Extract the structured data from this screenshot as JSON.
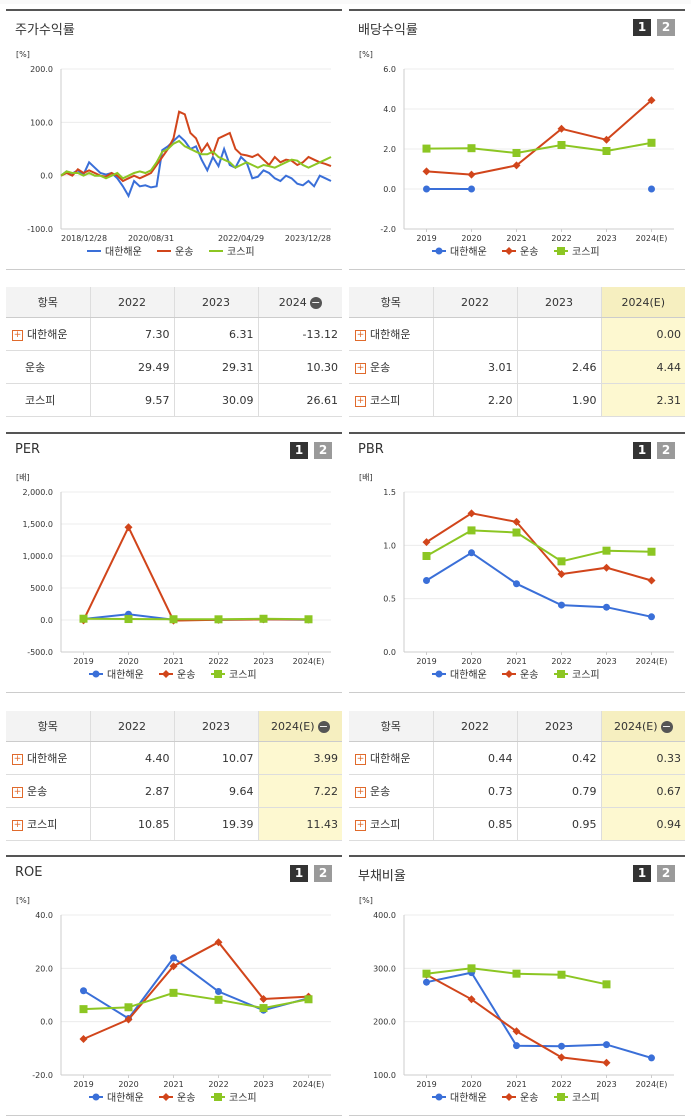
{
  "colors": {
    "s1": "#3a6fd8",
    "s2": "#d1451b",
    "s3": "#8cc623"
  },
  "legend": [
    "대한해운",
    "운송",
    "코스피"
  ],
  "panels": {
    "p1": {
      "title": "주가수익률",
      "unit": "[%]"
    },
    "p2": {
      "title": "배당수익률",
      "unit": "[%]"
    },
    "p3": {
      "title": "PER",
      "unit": "[배]"
    },
    "p4": {
      "title": "PBR",
      "unit": "[배]"
    },
    "p5": {
      "title": "ROE",
      "unit": "[%]"
    },
    "p6": {
      "title": "부채비율",
      "unit": "[%]"
    }
  },
  "page_buttons": [
    "1",
    "2"
  ],
  "tables": {
    "t1": {
      "headers": [
        "항목",
        "2022",
        "2023",
        "2024"
      ],
      "rows": [
        {
          "name": "대한해운",
          "plus": true,
          "values": [
            "7.30",
            "6.31",
            "-13.12"
          ]
        },
        {
          "name": "운송",
          "plus": false,
          "values": [
            "29.49",
            "29.31",
            "10.30"
          ]
        },
        {
          "name": "코스피",
          "plus": false,
          "values": [
            "9.57",
            "30.09",
            "26.61"
          ]
        }
      ]
    },
    "t2": {
      "headers": [
        "항목",
        "2022",
        "2023",
        "2024(E)"
      ],
      "rows": [
        {
          "name": "대한해운",
          "plus": true,
          "values": [
            "",
            "",
            "0.00"
          ]
        },
        {
          "name": "운송",
          "plus": true,
          "values": [
            "3.01",
            "2.46",
            "4.44"
          ]
        },
        {
          "name": "코스피",
          "plus": true,
          "values": [
            "2.20",
            "1.90",
            "2.31"
          ]
        }
      ]
    },
    "t3": {
      "headers": [
        "항목",
        "2022",
        "2023",
        "2024(E)"
      ],
      "rows": [
        {
          "name": "대한해운",
          "plus": true,
          "values": [
            "4.40",
            "10.07",
            "3.99"
          ]
        },
        {
          "name": "운송",
          "plus": true,
          "values": [
            "2.87",
            "9.64",
            "7.22"
          ]
        },
        {
          "name": "코스피",
          "plus": true,
          "values": [
            "10.85",
            "19.39",
            "11.43"
          ]
        }
      ]
    },
    "t4": {
      "headers": [
        "항목",
        "2022",
        "2023",
        "2024(E)"
      ],
      "rows": [
        {
          "name": "대한해운",
          "plus": true,
          "values": [
            "0.44",
            "0.42",
            "0.33"
          ]
        },
        {
          "name": "운송",
          "plus": true,
          "values": [
            "0.73",
            "0.79",
            "0.67"
          ]
        },
        {
          "name": "코스피",
          "plus": true,
          "values": [
            "0.85",
            "0.95",
            "0.94"
          ]
        }
      ]
    }
  },
  "chart_data": [
    {
      "id": "p1",
      "type": "line",
      "title": "주가수익률",
      "ylabel": "[%]",
      "ylim": [
        -100,
        200
      ],
      "yticks": [
        "200.0",
        "100.0",
        "0.0",
        "-100.0"
      ],
      "yticks_values": [
        200,
        100,
        0,
        -100
      ],
      "xticks": [
        "2018/12/28",
        "2020/08/31",
        "2022/04/29",
        "2023/12/28"
      ],
      "series": [
        {
          "name": "대한해운",
          "values": [
            0,
            8,
            4,
            10,
            2,
            25,
            15,
            5,
            2,
            5,
            -5,
            -20,
            -38,
            -10,
            -20,
            -18,
            -22,
            -20,
            48,
            55,
            65,
            75,
            65,
            50,
            55,
            30,
            10,
            35,
            18,
            50,
            20,
            15,
            35,
            25,
            -5,
            -2,
            10,
            5,
            -5,
            -10,
            0,
            -5,
            -15,
            -18,
            -10,
            -20,
            0,
            -5,
            -10
          ]
        },
        {
          "name": "운송",
          "values": [
            0,
            5,
            0,
            12,
            5,
            10,
            5,
            0,
            -2,
            5,
            0,
            -10,
            -5,
            0,
            -5,
            0,
            5,
            20,
            35,
            50,
            70,
            120,
            115,
            80,
            70,
            45,
            60,
            40,
            70,
            75,
            80,
            50,
            40,
            38,
            35,
            40,
            30,
            20,
            35,
            25,
            30,
            28,
            20,
            25,
            35,
            30,
            25,
            22,
            18
          ]
        },
        {
          "name": "코스피",
          "values": [
            0,
            8,
            5,
            5,
            0,
            5,
            0,
            0,
            -5,
            0,
            5,
            -5,
            0,
            5,
            8,
            5,
            10,
            25,
            45,
            50,
            60,
            65,
            55,
            50,
            45,
            40,
            40,
            45,
            35,
            30,
            25,
            15,
            20,
            25,
            20,
            15,
            20,
            18,
            15,
            20,
            25,
            30,
            28,
            20,
            15,
            20,
            25,
            30,
            35
          ]
        }
      ]
    },
    {
      "id": "p2",
      "type": "line",
      "title": "배당수익률",
      "ylabel": "[%]",
      "ylim": [
        -2,
        6
      ],
      "yticks": [
        "6.0",
        "4.0",
        "2.0",
        "0.0",
        "-2.0"
      ],
      "yticks_values": [
        6,
        4,
        2,
        0,
        -2
      ],
      "categories": [
        "2019",
        "2020",
        "2021",
        "2022",
        "2023",
        "2024(E)"
      ],
      "series": [
        {
          "name": "대한해운",
          "values": [
            0,
            0,
            null,
            null,
            null,
            0
          ]
        },
        {
          "name": "운송",
          "values": [
            0.88,
            0.72,
            1.18,
            3.01,
            2.46,
            4.44
          ]
        },
        {
          "name": "코스피",
          "values": [
            2.02,
            2.04,
            1.8,
            2.2,
            1.9,
            2.31
          ]
        }
      ]
    },
    {
      "id": "p3",
      "type": "line",
      "title": "PER",
      "ylabel": "[배]",
      "ylim": [
        -500,
        2000
      ],
      "yticks": [
        "2,000.0",
        "1,500.0",
        "1,000.0",
        "500.0",
        "0.0",
        "-500.0"
      ],
      "yticks_values": [
        2000,
        1500,
        1000,
        500,
        0,
        -500
      ],
      "categories": [
        "2019",
        "2020",
        "2021",
        "2022",
        "2023",
        "2024(E)"
      ],
      "series": [
        {
          "name": "대한해운",
          "values": [
            15,
            90,
            5,
            4.4,
            10.07,
            3.99
          ]
        },
        {
          "name": "운송",
          "values": [
            -5,
            1450,
            -10,
            2.87,
            9.64,
            7.22
          ]
        },
        {
          "name": "코스피",
          "values": [
            20,
            15,
            12,
            10.85,
            19.39,
            11.43
          ]
        }
      ]
    },
    {
      "id": "p4",
      "type": "line",
      "title": "PBR",
      "ylabel": "[배]",
      "ylim": [
        0,
        1.5
      ],
      "yticks": [
        "1.5",
        "1.0",
        "0.5",
        "0.0"
      ],
      "yticks_values": [
        1.5,
        1,
        0.5,
        0
      ],
      "categories": [
        "2019",
        "2020",
        "2021",
        "2022",
        "2023",
        "2024(E)"
      ],
      "series": [
        {
          "name": "대한해운",
          "values": [
            0.67,
            0.93,
            0.64,
            0.44,
            0.42,
            0.33
          ]
        },
        {
          "name": "운송",
          "values": [
            1.03,
            1.3,
            1.22,
            0.73,
            0.79,
            0.67
          ]
        },
        {
          "name": "코스피",
          "values": [
            0.9,
            1.14,
            1.12,
            0.85,
            0.95,
            0.94
          ]
        }
      ]
    },
    {
      "id": "p5",
      "type": "line",
      "title": "ROE",
      "ylabel": "[%]",
      "ylim": [
        -20,
        40
      ],
      "yticks": [
        "40.0",
        "20.0",
        "0.0",
        "-20.0"
      ],
      "yticks_values": [
        40,
        20,
        0,
        -20
      ],
      "categories": [
        "2019",
        "2020",
        "2021",
        "2022",
        "2023",
        "2024(E)"
      ],
      "series": [
        {
          "name": "대한해운",
          "values": [
            11.6,
            1.2,
            23.9,
            11.3,
            4.3,
            8.8
          ]
        },
        {
          "name": "운송",
          "values": [
            -6.5,
            0.8,
            20.8,
            29.8,
            8.5,
            9.4
          ]
        },
        {
          "name": "코스피",
          "values": [
            4.7,
            5.4,
            10.8,
            8.2,
            5.1,
            8.4
          ]
        }
      ]
    },
    {
      "id": "p6",
      "type": "line",
      "title": "부채비율",
      "ylabel": "[%]",
      "ylim": [
        100,
        400
      ],
      "yticks": [
        "400.0",
        "300.0",
        "200.0",
        "100.0"
      ],
      "yticks_values": [
        400,
        300,
        200,
        100
      ],
      "categories": [
        "2019",
        "2020",
        "2021",
        "2022",
        "2023",
        "2024(E)"
      ],
      "series": [
        {
          "name": "대한해운",
          "values": [
            274,
            292,
            155,
            154,
            157,
            132
          ]
        },
        {
          "name": "운송",
          "values": [
            288,
            242,
            182,
            133,
            123,
            null
          ]
        },
        {
          "name": "코스피",
          "values": [
            290,
            300,
            290,
            288,
            270,
            null
          ]
        }
      ]
    }
  ]
}
